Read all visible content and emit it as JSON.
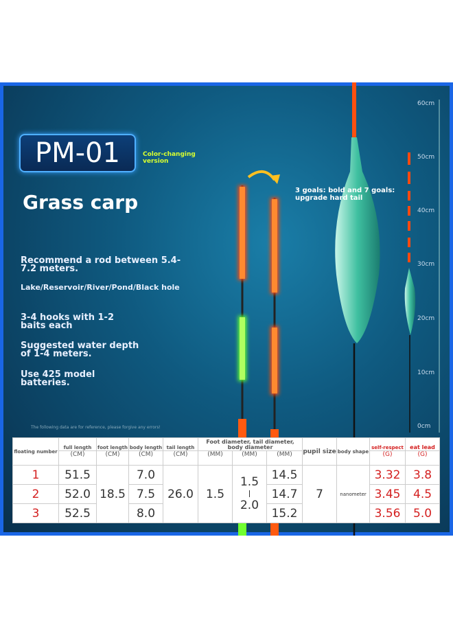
{
  "title": "PM-01",
  "badge": "Color-changing version",
  "heading": "Grass carp",
  "features": [
    "Recommend a rod between 5.4-7.2 meters.",
    "Lake/Reservoir/River/Pond/Black hole",
    "3-4 hooks with 1-2 baits each",
    "Suggested water depth of 1-4 meters.",
    "Use 425 model batteries."
  ],
  "callout": "3 goals: bold and 7 goals: upgrade hard tail",
  "ruler": [
    "60cm",
    "50cm",
    "40cm",
    "30cm",
    "20cm",
    "10cm",
    "0cm"
  ],
  "note": "The following data are for reference, please forgive any errors!",
  "table": {
    "headers": [
      "floating number",
      "full length",
      "foot length",
      "body length",
      "tail length",
      [
        "Foot diameter, tail diameter,",
        "body diameter"
      ],
      "pupil size",
      "body shape",
      "self-respect",
      "eat lead"
    ],
    "units": [
      "(CM)",
      "(CM)",
      "(CM)",
      "(CM)",
      "(MM)",
      "(MM)",
      "(MM)",
      "(G)",
      "(G)"
    ],
    "rows": [
      [
        "1",
        "51.5",
        "18.5",
        "7.0",
        "26.0",
        "1.5",
        [
          "1.5",
          "2.0"
        ],
        "14.5",
        "7",
        "nanometer",
        "3.32",
        "3.8"
      ],
      [
        "2",
        "52.0",
        "7.5",
        "14.7",
        "3.45",
        "4.5"
      ],
      [
        "3",
        "52.5",
        "8.0",
        "15.2",
        "3.56",
        "5.0"
      ]
    ]
  }
}
